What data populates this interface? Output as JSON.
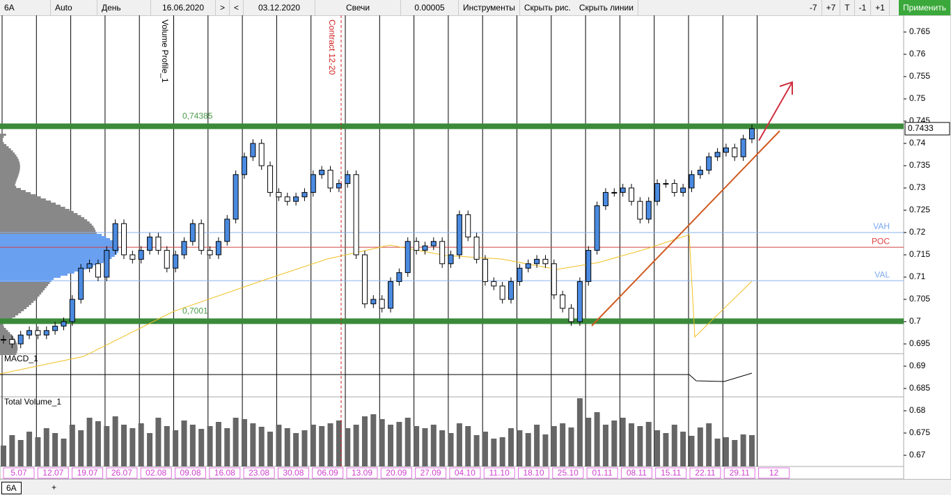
{
  "toolbar": {
    "symbol": "6A",
    "scale": "Auto",
    "period": "День",
    "from": "16.06.2020",
    "next": ">",
    "prev": "<",
    "to": "03.12.2020",
    "style": "Свечи",
    "step": "0.00005",
    "tools": "Инструменты",
    "hide_drawings": "Скрыть рис.",
    "hide_lines": "Скрыть линии",
    "buttons": [
      "-7",
      "+7",
      "T",
      "-1",
      "+1"
    ],
    "apply": "Применить"
  },
  "price_axis": {
    "ylim": [
      0.67,
      0.765
    ],
    "ticks": [
      0.765,
      0.76,
      0.755,
      0.75,
      0.745,
      0.74,
      0.735,
      0.73,
      0.725,
      0.72,
      0.715,
      0.71,
      0.705,
      0.7,
      0.695,
      0.69,
      0.685,
      0.68,
      0.675,
      0.67
    ],
    "last_price": 0.7433
  },
  "levels": {
    "upper": {
      "value": 0.74385,
      "label": "0,74385"
    },
    "lower": {
      "value": 0.7001,
      "label": "0,7001"
    },
    "vah": {
      "value": 0.72,
      "label": "VAH"
    },
    "poc": {
      "value": 0.7167,
      "label": "POC"
    },
    "val": {
      "value": 0.7092,
      "label": "VAL"
    }
  },
  "annotations": {
    "volume_profile": "Volume Profile_1",
    "contract": "Contract 12-20",
    "macd": "MACD_1",
    "volume": "Total Volume_1"
  },
  "dates": [
    "5.07",
    "12.07",
    "19.07",
    "26.07",
    "02.08",
    "09.08",
    "16.08",
    "23.08",
    "30.08",
    "06.09",
    "13.09",
    "20.09",
    "27.09",
    "04.10",
    "11.10",
    "18.10",
    "25.10",
    "01.11",
    "08.11",
    "15.11",
    "22.11",
    "29.11",
    "12"
  ],
  "closes": [
    0.696,
    0.695,
    0.697,
    0.698,
    0.697,
    0.698,
    0.699,
    0.7,
    0.705,
    0.712,
    0.713,
    0.71,
    0.716,
    0.722,
    0.715,
    0.714,
    0.716,
    0.719,
    0.716,
    0.712,
    0.715,
    0.718,
    0.722,
    0.716,
    0.715,
    0.718,
    0.723,
    0.733,
    0.737,
    0.74,
    0.735,
    0.729,
    0.728,
    0.727,
    0.728,
    0.729,
    0.733,
    0.734,
    0.73,
    0.731,
    0.733,
    0.715,
    0.704,
    0.705,
    0.703,
    0.709,
    0.711,
    0.718,
    0.716,
    0.717,
    0.718,
    0.713,
    0.715,
    0.724,
    0.719,
    0.714,
    0.709,
    0.708,
    0.705,
    0.709,
    0.712,
    0.713,
    0.714,
    0.713,
    0.706,
    0.703,
    0.7,
    0.709,
    0.716,
    0.726,
    0.729,
    0.729,
    0.73,
    0.727,
    0.723,
    0.727,
    0.731,
    0.731,
    0.729,
    0.73,
    0.733,
    0.734,
    0.737,
    0.738,
    0.739,
    0.737,
    0.741,
    0.7433
  ],
  "volumes": [
    30,
    45,
    38,
    50,
    42,
    55,
    48,
    40,
    60,
    52,
    70,
    65,
    58,
    72,
    60,
    55,
    62,
    48,
    70,
    58,
    52,
    66,
    60,
    54,
    58,
    64,
    55,
    70,
    68,
    62,
    57,
    50,
    60,
    55,
    48,
    52,
    60,
    58,
    62,
    66,
    55,
    60,
    72,
    75,
    68,
    60,
    64,
    70,
    58,
    55,
    60,
    52,
    48,
    62,
    58,
    45,
    50,
    40,
    42,
    55,
    52,
    48,
    60,
    46,
    58,
    62,
    56,
    98,
    70,
    78,
    60,
    66,
    70,
    62,
    58,
    64,
    52,
    48,
    60,
    50,
    44,
    56,
    62,
    40,
    42,
    38,
    46,
    45
  ]
}
